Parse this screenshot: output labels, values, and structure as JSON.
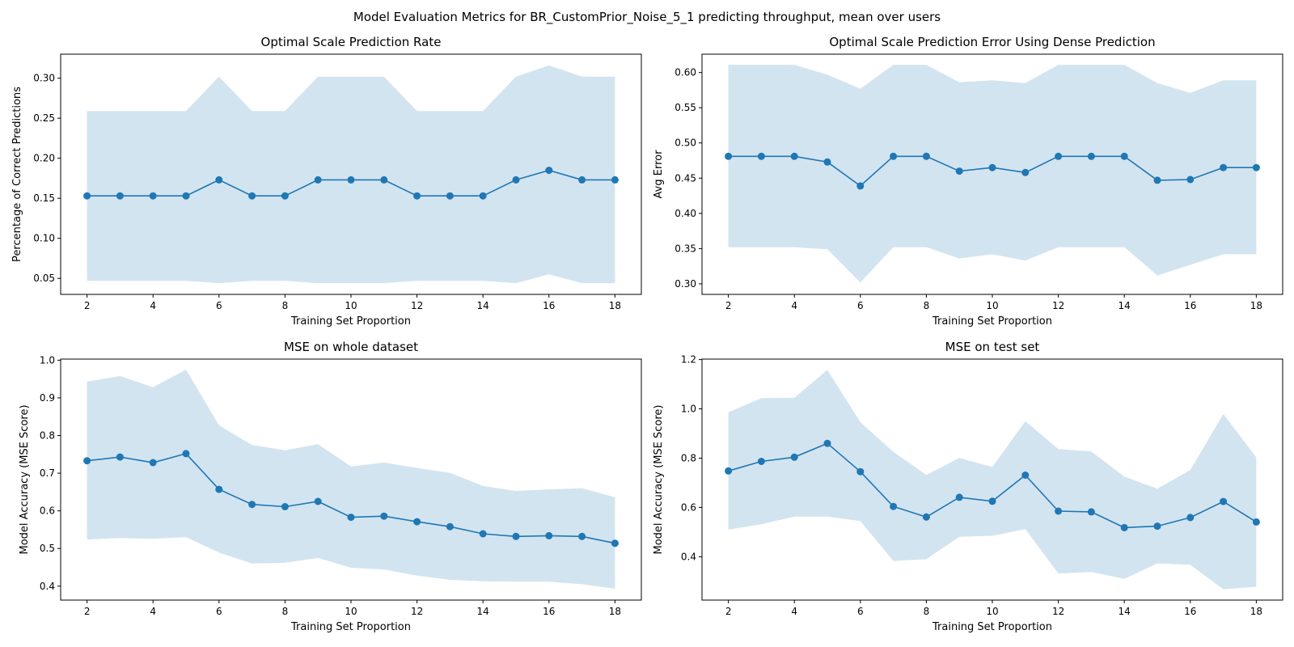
{
  "figure": {
    "title": "Model Evaluation Metrics for BR_CustomPrior_Noise_5_1 predicting throughput, mean over users",
    "line_color": "#1f77b4",
    "band_color": "#1f77b4"
  },
  "chart_data": [
    {
      "type": "line",
      "title": "Optimal Scale Prediction Rate",
      "xlabel": "Training Set Proportion",
      "ylabel": "Percentage of Correct Predictions",
      "x": [
        2,
        3,
        4,
        5,
        6,
        7,
        8,
        9,
        10,
        11,
        12,
        13,
        14,
        15,
        16,
        17,
        18
      ],
      "series": [
        {
          "values": [
            0.153,
            0.153,
            0.153,
            0.153,
            0.173,
            0.153,
            0.153,
            0.173,
            0.173,
            0.173,
            0.153,
            0.153,
            0.153,
            0.173,
            0.185,
            0.173,
            0.173
          ],
          "upper": [
            0.259,
            0.259,
            0.259,
            0.259,
            0.302,
            0.259,
            0.259,
            0.302,
            0.302,
            0.302,
            0.259,
            0.259,
            0.259,
            0.302,
            0.316,
            0.302,
            0.302
          ],
          "lower": [
            0.047,
            0.047,
            0.047,
            0.047,
            0.044,
            0.047,
            0.047,
            0.044,
            0.044,
            0.044,
            0.047,
            0.047,
            0.047,
            0.044,
            0.055,
            0.044,
            0.044
          ]
        }
      ],
      "xlim": [
        1.2,
        18.8
      ],
      "ylim": [
        0.03,
        0.33
      ],
      "xticks": [
        2,
        4,
        6,
        8,
        10,
        12,
        14,
        16,
        18
      ],
      "xtick_labels": [
        "2",
        "4",
        "6",
        "8",
        "10",
        "12",
        "14",
        "16",
        "18"
      ],
      "yticks": [
        0.05,
        0.1,
        0.15,
        0.2,
        0.25,
        0.3
      ],
      "ytick_labels": [
        "0.05",
        "0.10",
        "0.15",
        "0.20",
        "0.25",
        "0.30"
      ]
    },
    {
      "type": "line",
      "title": "Optimal Scale Prediction Error Using Dense Prediction",
      "xlabel": "Training Set Proportion",
      "ylabel": "Avg Error",
      "x": [
        2,
        3,
        4,
        5,
        6,
        7,
        8,
        9,
        10,
        11,
        12,
        13,
        14,
        15,
        16,
        17,
        18
      ],
      "series": [
        {
          "values": [
            0.481,
            0.481,
            0.481,
            0.473,
            0.439,
            0.481,
            0.481,
            0.46,
            0.465,
            0.458,
            0.481,
            0.481,
            0.481,
            0.447,
            0.448,
            0.465,
            0.465
          ],
          "upper": [
            0.611,
            0.611,
            0.611,
            0.597,
            0.577,
            0.611,
            0.611,
            0.586,
            0.589,
            0.585,
            0.611,
            0.611,
            0.611,
            0.585,
            0.571,
            0.589,
            0.589
          ],
          "lower": [
            0.352,
            0.352,
            0.352,
            0.349,
            0.302,
            0.352,
            0.352,
            0.336,
            0.342,
            0.333,
            0.352,
            0.352,
            0.352,
            0.312,
            0.327,
            0.342,
            0.342
          ]
        }
      ],
      "xlim": [
        1.2,
        18.8
      ],
      "ylim": [
        0.285,
        0.626
      ],
      "xticks": [
        2,
        4,
        6,
        8,
        10,
        12,
        14,
        16,
        18
      ],
      "xtick_labels": [
        "2",
        "4",
        "6",
        "8",
        "10",
        "12",
        "14",
        "16",
        "18"
      ],
      "yticks": [
        0.3,
        0.35,
        0.4,
        0.45,
        0.5,
        0.55,
        0.6
      ],
      "ytick_labels": [
        "0.30",
        "0.35",
        "0.40",
        "0.45",
        "0.50",
        "0.55",
        "0.60"
      ]
    },
    {
      "type": "line",
      "title": "MSE on whole dataset",
      "xlabel": "Training Set Proportion",
      "ylabel": "Model Accuracy (MSE Score)",
      "x": [
        2,
        3,
        4,
        5,
        6,
        7,
        8,
        9,
        10,
        11,
        12,
        13,
        14,
        15,
        16,
        17,
        18
      ],
      "series": [
        {
          "values": [
            0.733,
            0.743,
            0.728,
            0.752,
            0.657,
            0.617,
            0.611,
            0.625,
            0.583,
            0.586,
            0.571,
            0.558,
            0.539,
            0.532,
            0.534,
            0.532,
            0.514
          ],
          "upper": [
            0.943,
            0.958,
            0.928,
            0.975,
            0.827,
            0.775,
            0.761,
            0.777,
            0.718,
            0.728,
            0.714,
            0.701,
            0.666,
            0.653,
            0.657,
            0.66,
            0.636
          ],
          "lower": [
            0.524,
            0.528,
            0.526,
            0.53,
            0.489,
            0.46,
            0.462,
            0.475,
            0.449,
            0.444,
            0.428,
            0.417,
            0.413,
            0.412,
            0.412,
            0.405,
            0.393
          ]
        }
      ],
      "xlim": [
        1.2,
        18.8
      ],
      "ylim": [
        0.363,
        1.003
      ],
      "xticks": [
        2,
        4,
        6,
        8,
        10,
        12,
        14,
        16,
        18
      ],
      "xtick_labels": [
        "2",
        "4",
        "6",
        "8",
        "10",
        "12",
        "14",
        "16",
        "18"
      ],
      "yticks": [
        0.4,
        0.5,
        0.6,
        0.7,
        0.8,
        0.9,
        1.0
      ],
      "ytick_labels": [
        "0.4",
        "0.5",
        "0.6",
        "0.7",
        "0.8",
        "0.9",
        "1.0"
      ]
    },
    {
      "type": "line",
      "title": "MSE on test set",
      "xlabel": "Training Set Proportion",
      "ylabel": "Model Accuracy (MSE Score)",
      "x": [
        2,
        3,
        4,
        5,
        6,
        7,
        8,
        9,
        10,
        11,
        12,
        13,
        14,
        15,
        16,
        17,
        18
      ],
      "series": [
        {
          "values": [
            0.748,
            0.787,
            0.804,
            0.86,
            0.745,
            0.604,
            0.561,
            0.641,
            0.625,
            0.731,
            0.585,
            0.582,
            0.518,
            0.524,
            0.559,
            0.624,
            0.541
          ],
          "upper": [
            0.986,
            1.043,
            1.045,
            1.158,
            0.946,
            0.826,
            0.732,
            0.801,
            0.764,
            0.95,
            0.837,
            0.827,
            0.725,
            0.676,
            0.752,
            0.979,
            0.803
          ],
          "lower": [
            0.51,
            0.532,
            0.563,
            0.563,
            0.545,
            0.383,
            0.39,
            0.481,
            0.485,
            0.512,
            0.332,
            0.338,
            0.31,
            0.373,
            0.367,
            0.268,
            0.278
          ]
        }
      ],
      "xlim": [
        1.2,
        18.8
      ],
      "ylim": [
        0.224,
        1.202
      ],
      "xticks": [
        2,
        4,
        6,
        8,
        10,
        12,
        14,
        16,
        18
      ],
      "xtick_labels": [
        "2",
        "4",
        "6",
        "8",
        "10",
        "12",
        "14",
        "16",
        "18"
      ],
      "yticks": [
        0.4,
        0.6,
        0.8,
        1.0,
        1.2
      ],
      "ytick_labels": [
        "0.4",
        "0.6",
        "0.8",
        "1.0",
        "1.2"
      ]
    }
  ]
}
